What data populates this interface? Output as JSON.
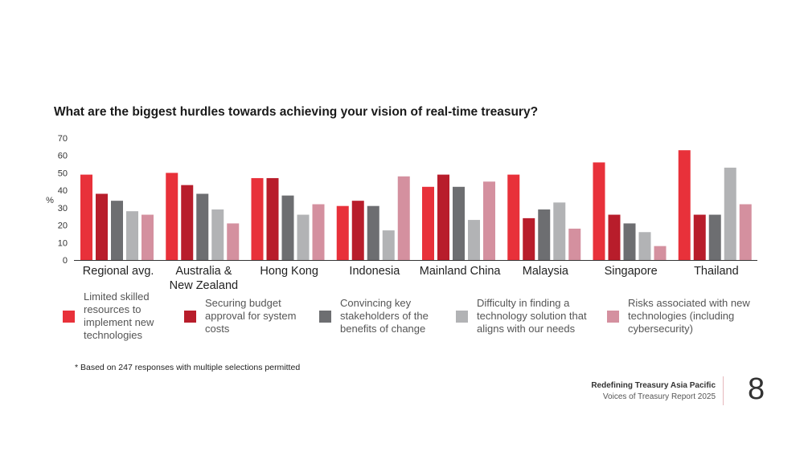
{
  "chart_data": {
    "type": "bar",
    "title": "What are the biggest hurdles towards achieving your vision of real-time treasury?",
    "ylabel": "%",
    "xlabel": "",
    "ylim": [
      0,
      70
    ],
    "yticks": [
      0,
      10,
      20,
      30,
      40,
      50,
      60,
      70
    ],
    "categories": [
      "Regional avg.",
      "Australia & New Zealand",
      "Hong Kong",
      "Indonesia",
      "Mainland China",
      "Malaysia",
      "Singapore",
      "Thailand"
    ],
    "series": [
      {
        "name": "Limited skilled resources to implement new technologies",
        "color": "#e8313a",
        "values": [
          49,
          50,
          47,
          31,
          42,
          49,
          56,
          63
        ]
      },
      {
        "name": "Securing budget approval for system costs",
        "color": "#b81d2b",
        "values": [
          38,
          43,
          47,
          34,
          49,
          24,
          26,
          26
        ]
      },
      {
        "name": "Convincing key stakeholders of the benefits of change",
        "color": "#6d6e71",
        "values": [
          34,
          38,
          37,
          31,
          42,
          29,
          21,
          26
        ]
      },
      {
        "name": "Difficulty in finding a technology solution that aligns with our needs",
        "color": "#b2b3b5",
        "values": [
          28,
          29,
          26,
          17,
          23,
          33,
          16,
          53
        ]
      },
      {
        "name": "Risks associated with new technologies (including cybersecurity)",
        "color": "#d4909f",
        "values": [
          26,
          21,
          32,
          48,
          45,
          18,
          8,
          32
        ]
      }
    ],
    "category_label_lines": [
      [
        "Regional avg."
      ],
      [
        "Australia &",
        "New Zealand"
      ],
      [
        "Hong Kong"
      ],
      [
        "Indonesia"
      ],
      [
        "Mainland China"
      ],
      [
        "Malaysia"
      ],
      [
        "Singapore"
      ],
      [
        "Thailand"
      ]
    ],
    "legend_position": "bottom",
    "grid": false
  },
  "legend": {
    "items": [
      {
        "label": "Limited skilled resources to implement new technologies",
        "color": "#e8313a"
      },
      {
        "label": "Securing budget approval for system costs",
        "color": "#b81d2b"
      },
      {
        "label": "Convincing key stakeholders of the benefits of change",
        "color": "#6d6e71"
      },
      {
        "label": "Difficulty in finding a technology solution that aligns with our needs",
        "color": "#b2b3b5"
      },
      {
        "label": "Risks associated with new technologies (including cybersecurity)",
        "color": "#d4909f"
      }
    ]
  },
  "footnote": "* Based on 247 responses with multiple selections permitted",
  "footer": {
    "title": "Redefining Treasury Asia Pacific",
    "subtitle": "Voices of Treasury Report 2025",
    "page_number": "8"
  }
}
